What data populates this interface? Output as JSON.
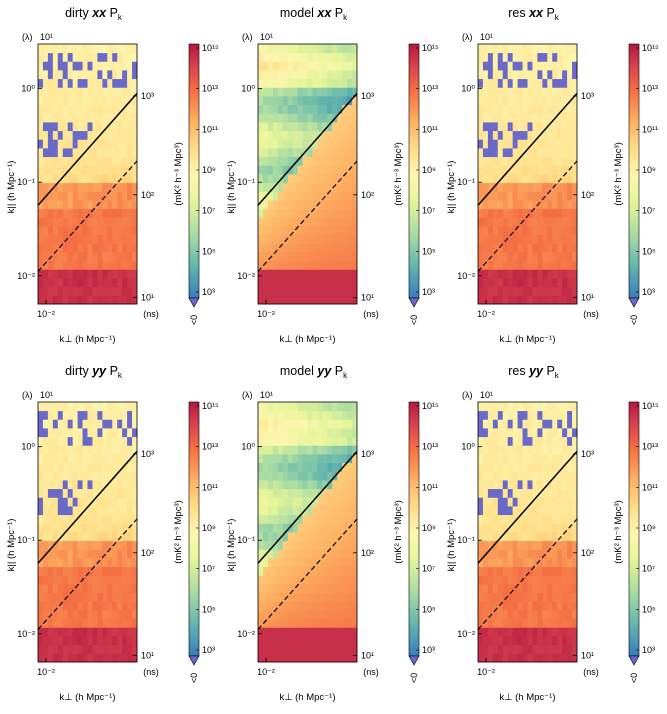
{
  "chart_data": [
    {
      "type": "heatmap",
      "title": "dirty xx P",
      "title_sub": "k",
      "panel": "dirty",
      "pol": "xx"
    },
    {
      "type": "heatmap",
      "title": "model xx P",
      "title_sub": "k",
      "panel": "model",
      "pol": "xx"
    },
    {
      "type": "heatmap",
      "title": "res xx P",
      "title_sub": "k",
      "panel": "res",
      "pol": "xx"
    },
    {
      "type": "heatmap",
      "title": "dirty yy P",
      "title_sub": "k",
      "panel": "dirty",
      "pol": "yy"
    },
    {
      "type": "heatmap",
      "title": "model yy P",
      "title_sub": "k",
      "panel": "model",
      "pol": "yy"
    },
    {
      "type": "heatmap",
      "title": "res yy P",
      "title_sub": "k",
      "panel": "res",
      "pol": "yy"
    }
  ],
  "axes": {
    "xlabel": "k⊥ (h Mpc⁻¹)",
    "ylabel": "k|| (h Mpc⁻¹)",
    "x_tick": "10⁻²",
    "y_ticks": [
      {
        "label": "10⁰",
        "value": 1
      },
      {
        "label": "10⁻¹",
        "value": 0.1
      },
      {
        "label": "10⁻²",
        "value": 0.01
      }
    ],
    "ylim": [
      0.005,
      3.0
    ],
    "top_unit": "(λ)",
    "top_tick": "10¹",
    "right_unit": "(ns)",
    "right_ticks": [
      {
        "label": "10³",
        "value": 1000
      },
      {
        "label": "10²",
        "value": 100
      },
      {
        "label": "10¹",
        "value": 10
      }
    ]
  },
  "colorbar": {
    "label": "(mK² h⁻³ Mpc³)",
    "scale": "log",
    "range": [
      1000,
      1000000000000000.0
    ],
    "ticks": [
      "10¹⁵",
      "10¹³",
      "10¹¹",
      "10⁹",
      "10⁷",
      "10⁵",
      "10³"
    ],
    "under_label": "<0",
    "colormap": "spectral"
  },
  "colors": {
    "negative": "#6a69c8",
    "horizon_line": "#000000"
  }
}
